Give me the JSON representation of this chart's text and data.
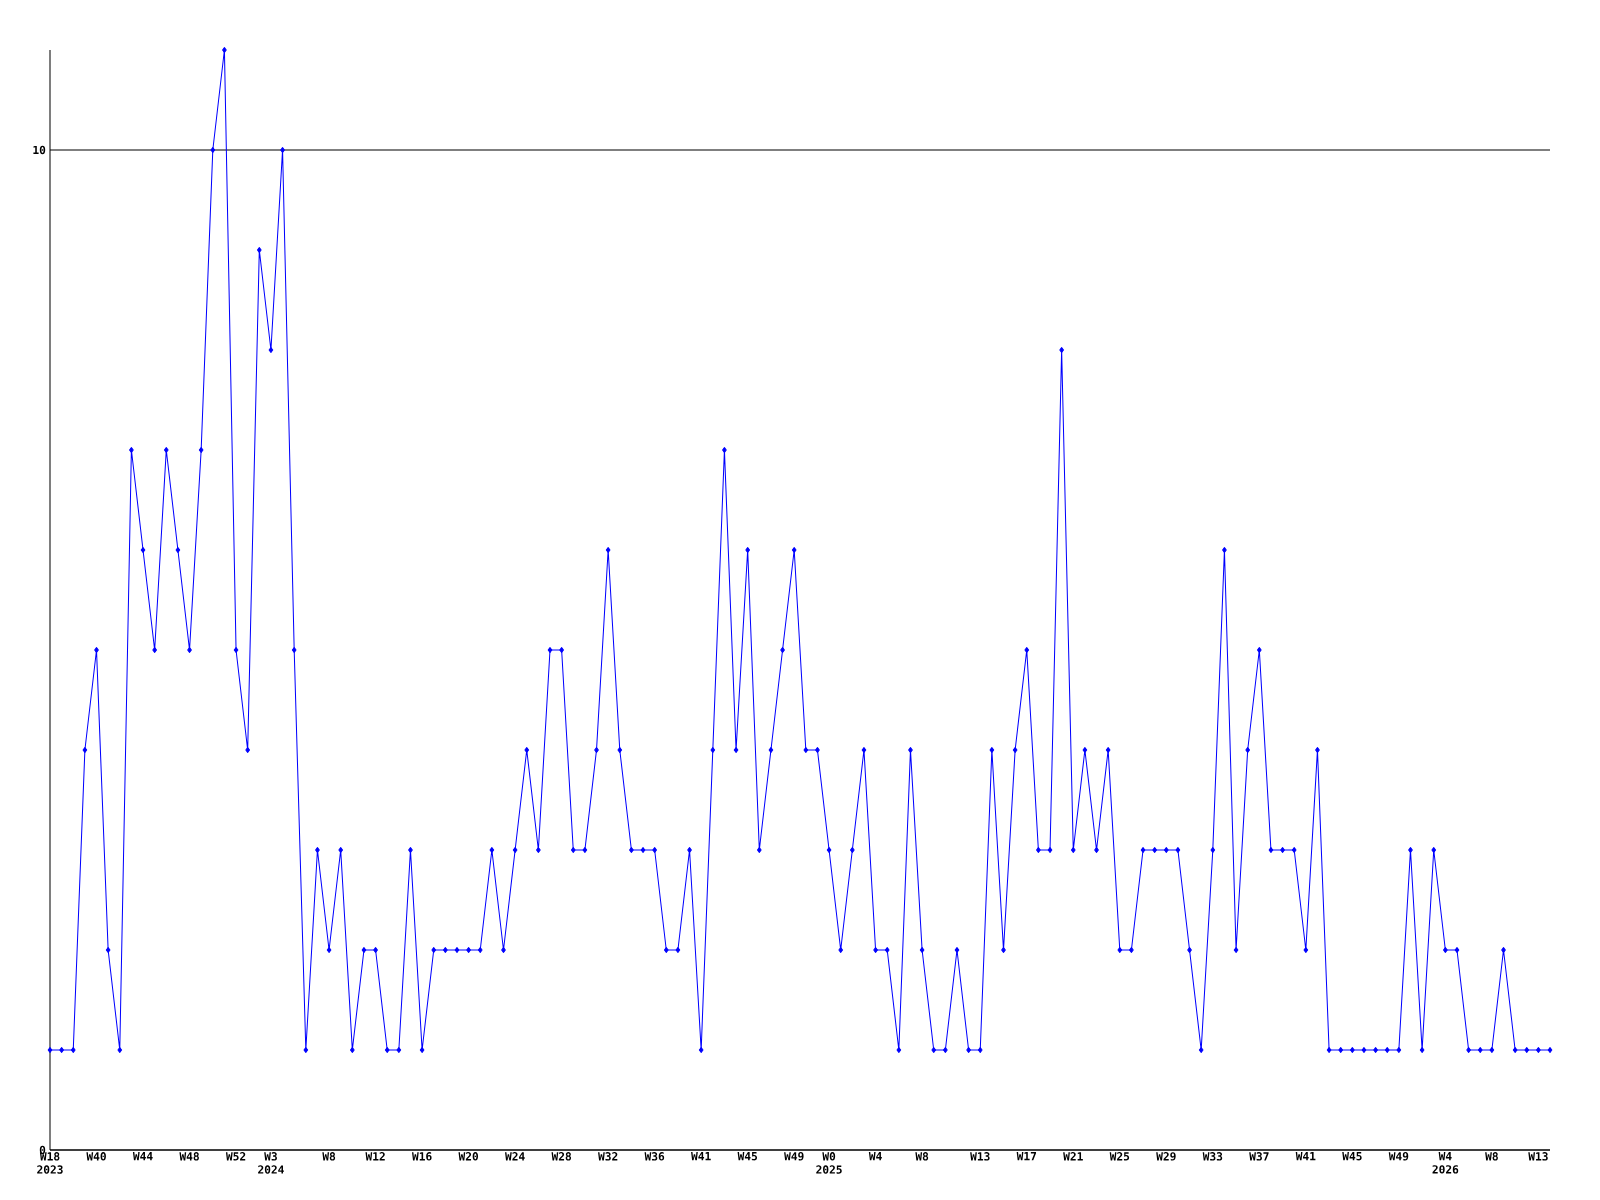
{
  "chart_data": {
    "type": "line",
    "categories": [
      "W18 2023",
      null,
      null,
      null,
      "W40",
      null,
      null,
      null,
      "W44",
      null,
      null,
      null,
      "W48",
      null,
      null,
      null,
      "W52",
      null,
      null,
      "W3 2024",
      null,
      null,
      null,
      null,
      "W8",
      null,
      null,
      null,
      "W12",
      null,
      null,
      null,
      "W16",
      null,
      null,
      null,
      "W20",
      null,
      null,
      null,
      "W24",
      null,
      null,
      null,
      "W28",
      null,
      null,
      null,
      "W32",
      null,
      null,
      null,
      "W36",
      null,
      null,
      null,
      "W41",
      null,
      null,
      null,
      "W45",
      null,
      null,
      null,
      "W49",
      null,
      null,
      "W0 2025",
      null,
      null,
      null,
      "W4",
      null,
      null,
      null,
      "W8",
      null,
      null,
      null,
      null,
      "W13",
      null,
      null,
      null,
      "W17",
      null,
      null,
      null,
      "W21",
      null,
      null,
      null,
      "W25",
      null,
      null,
      null,
      "W29",
      null,
      null,
      null,
      "W33",
      null,
      null,
      null,
      "W37",
      null,
      null,
      null,
      "W41",
      null,
      null,
      null,
      "W45",
      null,
      null,
      null,
      "W49",
      null,
      null,
      null,
      "W4 2026",
      null,
      null,
      null,
      "W8",
      null,
      null,
      null,
      "W13",
      null
    ],
    "values": [
      1,
      1,
      1,
      4,
      5,
      2,
      1,
      7,
      6,
      5,
      7,
      6,
      5,
      7,
      10,
      11,
      5,
      4,
      9,
      8,
      10,
      5,
      1,
      3,
      2,
      3,
      1,
      2,
      2,
      1,
      1,
      3,
      1,
      2,
      2,
      2,
      2,
      2,
      3,
      2,
      3,
      4,
      3,
      5,
      5,
      3,
      3,
      4,
      6,
      4,
      3,
      3,
      3,
      2,
      2,
      3,
      1,
      4,
      7,
      4,
      6,
      3,
      4,
      5,
      6,
      4,
      4,
      3,
      2,
      3,
      4,
      2,
      2,
      1,
      4,
      2,
      1,
      1,
      2,
      1,
      1,
      4,
      2,
      4,
      5,
      3,
      3,
      8,
      3,
      4,
      3,
      4,
      2,
      2,
      3,
      3,
      3,
      3,
      2,
      1,
      3,
      6,
      2,
      4,
      5,
      3,
      3,
      3,
      2,
      4,
      1,
      1,
      1,
      1,
      1,
      1,
      1,
      3,
      1,
      3,
      2,
      2,
      1,
      1,
      1,
      2,
      1,
      1,
      1,
      1
    ],
    "color": "#0000ff",
    "marker": "diamond",
    "line_style": "solid",
    "grid": "y",
    "ylim": [
      0,
      11
    ],
    "yticks": [
      0,
      10
    ]
  }
}
